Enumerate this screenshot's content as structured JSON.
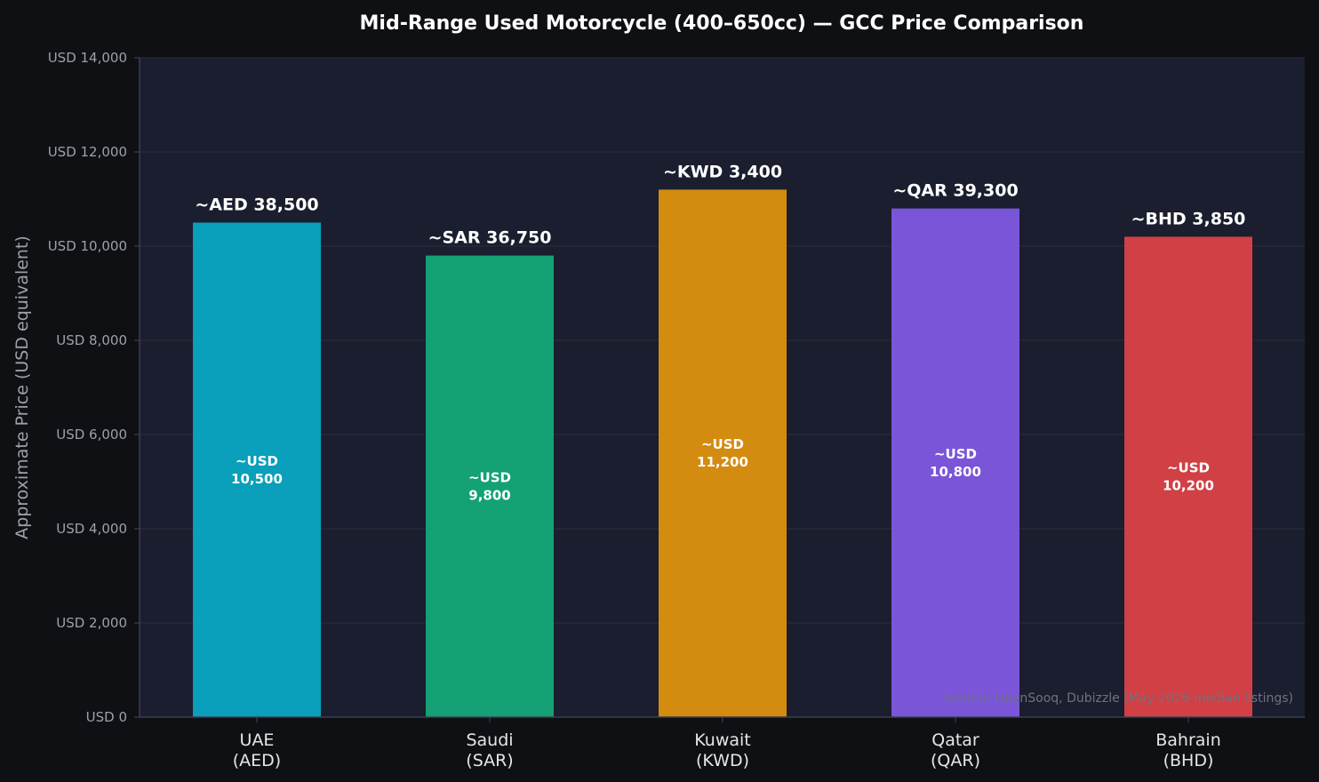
{
  "chart_data": {
    "type": "bar",
    "title": "Mid-Range Used Motorcycle (400–650cc) — GCC Price Comparison",
    "ylabel": "Approximate Price (USD equivalent)",
    "xlabel": "",
    "ylim": [
      0,
      14000
    ],
    "yticks": [
      {
        "value": 0,
        "label": "USD 0"
      },
      {
        "value": 2000,
        "label": "USD 2,000"
      },
      {
        "value": 4000,
        "label": "USD 4,000"
      },
      {
        "value": 6000,
        "label": "USD 6,000"
      },
      {
        "value": 8000,
        "label": "USD 8,000"
      },
      {
        "value": 10000,
        "label": "USD 10,000"
      },
      {
        "value": 12000,
        "label": "USD 12,000"
      },
      {
        "value": 14000,
        "label": "USD 14,000"
      }
    ],
    "grid": true,
    "bars": [
      {
        "line1": "UAE",
        "line2": "(AED)",
        "value": 10500,
        "local_label": "~AED 38,500",
        "usd_line1": "~USD",
        "usd_line2": "10,500",
        "color": "#0a9fba"
      },
      {
        "line1": "Saudi",
        "line2": "(SAR)",
        "value": 9800,
        "local_label": "~SAR 36,750",
        "usd_line1": "~USD",
        "usd_line2": "9,800",
        "color": "#13a175"
      },
      {
        "line1": "Kuwait",
        "line2": "(KWD)",
        "value": 11200,
        "local_label": "~KWD 3,400",
        "usd_line1": "~USD",
        "usd_line2": "11,200",
        "color": "#d38b10"
      },
      {
        "line1": "Qatar",
        "line2": "(QAR)",
        "value": 10800,
        "local_label": "~QAR 39,300",
        "usd_line1": "~USD",
        "usd_line2": "10,800",
        "color": "#7a55d8"
      },
      {
        "line1": "Bahrain",
        "line2": "(BHD)",
        "value": 10200,
        "local_label": "~BHD 3,850",
        "usd_line1": "~USD",
        "usd_line2": "10,200",
        "color": "#d04045"
      }
    ],
    "source": "Source: OpenSooq, Dubizzle (May 2026 median listings)"
  },
  "colors": {
    "page_background": "#0f1014",
    "plot_background": "#1b1e2e",
    "grid": "#2a2d3e",
    "axis": "#3a3e52"
  }
}
